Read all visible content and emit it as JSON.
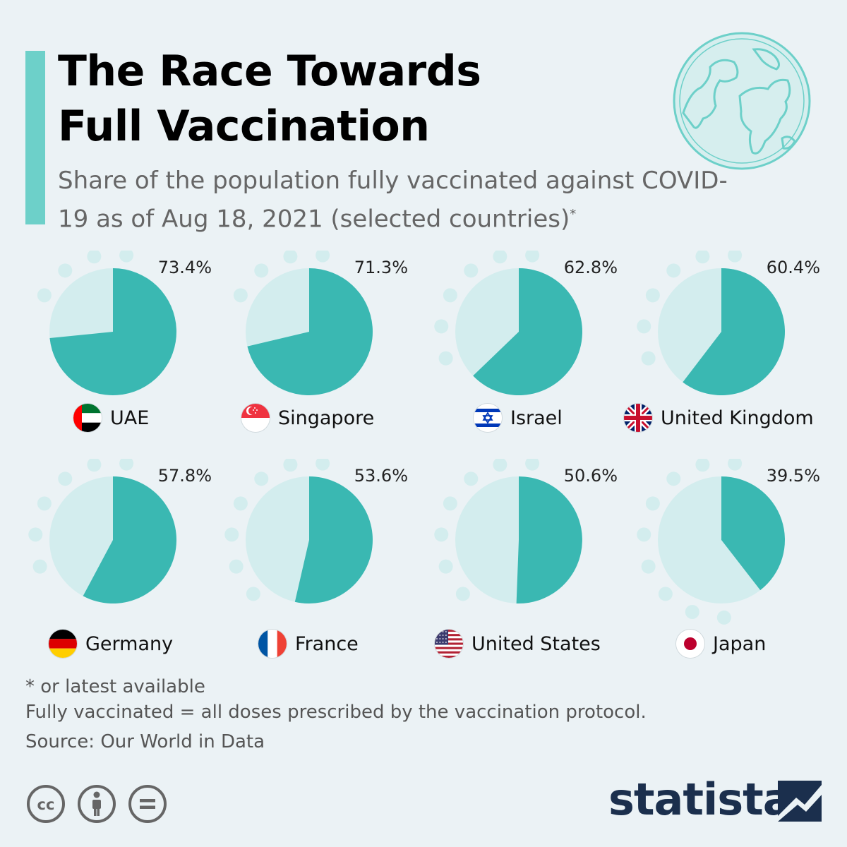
{
  "header": {
    "title_line1": "The Race Towards",
    "title_line2": "Full Vaccination",
    "subtitle": "Share of the population fully vaccinated against COVID-19 as of Aug 18, 2021 (selected countries)",
    "subtitle_mark": "*"
  },
  "colors": {
    "accent": "#6dd0c9",
    "pie_fill": "#3ab8b2",
    "pie_rest": "#d3edee",
    "dots": "#d3edee",
    "background": "#ebf2f5",
    "brand": "#1b2f4d"
  },
  "chart_data": {
    "type": "pie",
    "values_unit": "%",
    "countries": [
      {
        "name": "UAE",
        "value": 73.4,
        "label": "73.4%",
        "flag": "uae-flag-icon"
      },
      {
        "name": "Singapore",
        "value": 71.3,
        "label": "71.3%",
        "flag": "singapore-flag-icon"
      },
      {
        "name": "Israel",
        "value": 62.8,
        "label": "62.8%",
        "flag": "israel-flag-icon"
      },
      {
        "name": "United Kingdom",
        "value": 60.4,
        "label": "60.4%",
        "flag": "uk-flag-icon"
      },
      {
        "name": "Germany",
        "value": 57.8,
        "label": "57.8%",
        "flag": "germany-flag-icon"
      },
      {
        "name": "France",
        "value": 53.6,
        "label": "53.6%",
        "flag": "france-flag-icon"
      },
      {
        "name": "United States",
        "value": 50.6,
        "label": "50.6%",
        "flag": "us-flag-icon"
      },
      {
        "name": "Japan",
        "value": 39.5,
        "label": "39.5%",
        "flag": "japan-flag-icon"
      }
    ]
  },
  "footer": {
    "note1": "* or latest available",
    "note2": "Fully vaccinated = all doses prescribed by the vaccination protocol.",
    "source": "Source: Our World in Data",
    "brand": "statista",
    "license_icons": [
      "cc-icon",
      "attribution-icon",
      "no-derivatives-icon"
    ]
  }
}
